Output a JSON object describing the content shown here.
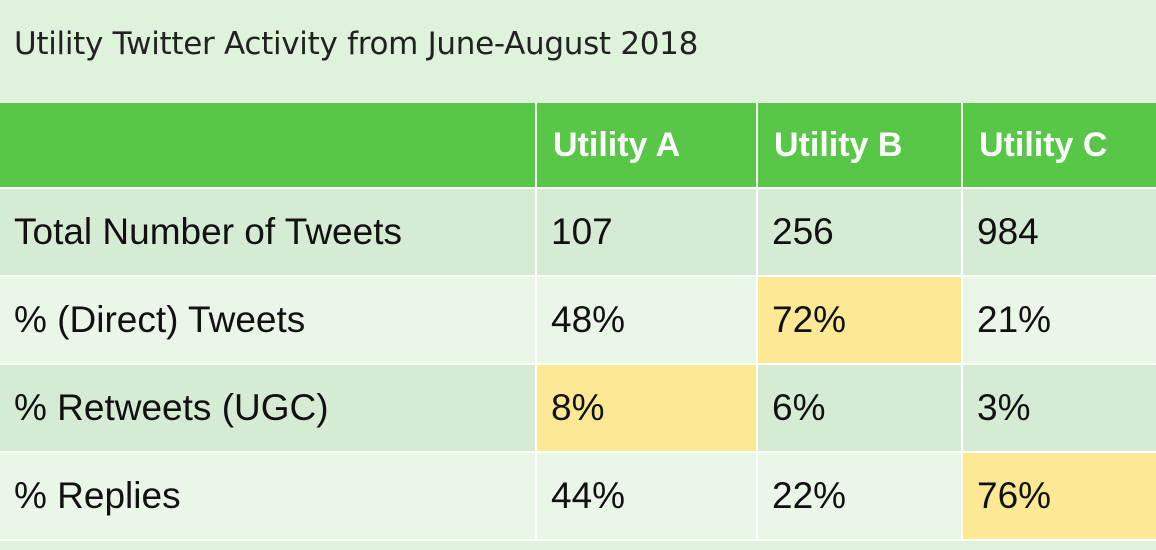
{
  "chart_data": {
    "type": "table",
    "title": "Utility Twitter Activity from June-August 2018",
    "columns": [
      "",
      "Utility A",
      "Utility B",
      "Utility C"
    ],
    "rows": [
      {
        "label": "Total Number of Tweets",
        "values": [
          "107",
          "256",
          "984"
        ],
        "highlight": [
          false,
          false,
          false
        ]
      },
      {
        "label": "% (Direct) Tweets",
        "values": [
          "48%",
          "72%",
          "21%"
        ],
        "highlight": [
          false,
          true,
          false
        ]
      },
      {
        "label": "% Retweets (UGC)",
        "values": [
          "8%",
          "6%",
          "3%"
        ],
        "highlight": [
          true,
          false,
          false
        ]
      },
      {
        "label": "% Replies",
        "values": [
          "44%",
          "22%",
          "76%"
        ],
        "highlight": [
          false,
          false,
          true
        ]
      }
    ],
    "colors": {
      "page_background": "#dff3dc",
      "header_background": "#58c747",
      "header_text": "#ffffff",
      "row_shade_a": "#d6ebd4",
      "row_shade_b": "#eaf6e8",
      "highlight": "#fde994"
    }
  }
}
